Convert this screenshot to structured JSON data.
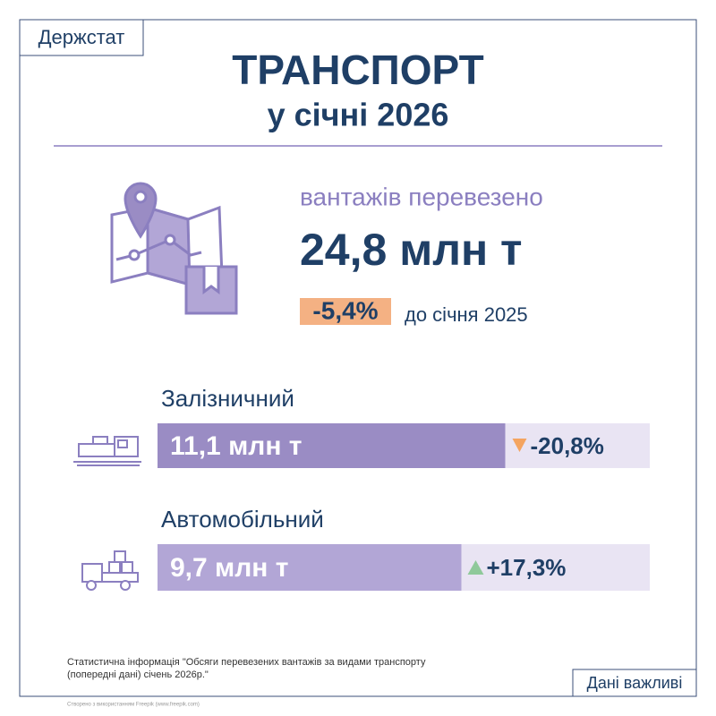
{
  "header": {
    "logo": "Держстат",
    "title": "ТРАНСПОРТ",
    "subtitle": "у січні 2026"
  },
  "summary": {
    "label": "вантажів перевезено",
    "value": "24,8 млн т",
    "change": "-5,4%",
    "comparison": "до січня 2025"
  },
  "modes": [
    {
      "name": "Залізничний",
      "value": 11.1,
      "value_label": "11,1 млн т",
      "change": "-20,8%"
    },
    {
      "name": "Автомобільний",
      "value": 9.7,
      "value_label": "9,7 млн т",
      "change": "+17,3%"
    }
  ],
  "footer": {
    "source": "Статистична інформація \"Обсяги перевезених вантажів за видами транспорту",
    "source_line2": "(попередні дані) січень 2026р.\"",
    "credit": "Створено з використанням Freepik (www.freepik.com)",
    "button": "Дані важливі"
  }
}
